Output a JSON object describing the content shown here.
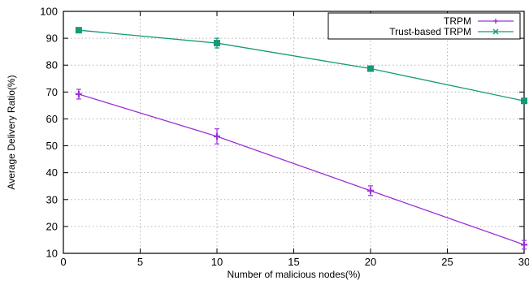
{
  "chart_data": {
    "type": "line",
    "xlabel": "Number of malicious nodes(%)",
    "ylabel": "Average Delivery Ratio(%)",
    "xlim": [
      0,
      30
    ],
    "ylim": [
      10,
      100
    ],
    "xticks": [
      0,
      5,
      10,
      15,
      20,
      25,
      30
    ],
    "yticks": [
      10,
      20,
      30,
      40,
      50,
      60,
      70,
      80,
      90,
      100
    ],
    "grid": true,
    "legend_position": "top-right",
    "series": [
      {
        "name": "TRPM",
        "color": "#9b30d9",
        "marker": "plus",
        "points": [
          {
            "x": 1,
            "y": 69.2,
            "err": 1.8
          },
          {
            "x": 10,
            "y": 53.5,
            "err": 2.8
          },
          {
            "x": 20,
            "y": 33.3,
            "err": 1.8
          },
          {
            "x": 30,
            "y": 13.2,
            "err": 1.6
          }
        ]
      },
      {
        "name": "Trust-based TRPM",
        "color": "#159a78",
        "marker": "cross",
        "points": [
          {
            "x": 1,
            "y": 93.0,
            "err": 0.5
          },
          {
            "x": 10,
            "y": 88.2,
            "err": 1.8
          },
          {
            "x": 20,
            "y": 78.7,
            "err": 0.8
          },
          {
            "x": 30,
            "y": 66.7,
            "err": 0.7
          }
        ]
      }
    ]
  }
}
